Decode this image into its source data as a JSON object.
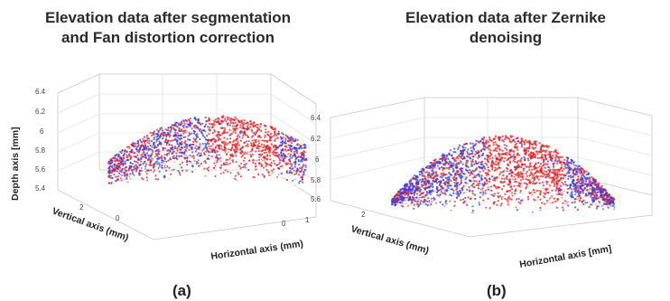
{
  "chart_data": [
    {
      "type": "scatter",
      "panel_label": "(a)",
      "title": "Elevation data after segmentation and Fan distortion correction",
      "title_lines": [
        "Elevation data after segmentation",
        "and Fan distortion correction"
      ],
      "xlabel": "Horizontal axis (mm)",
      "ylabel": "Vertical axis (mm)",
      "zlabel": "Depth axis [mm]",
      "z_ticks": [
        "5.4",
        "5.6",
        "5.8",
        "6",
        "6.2",
        "6.4"
      ],
      "zlim": [
        5.4,
        6.4
      ],
      "x_ticks": [
        "0",
        "1"
      ],
      "y_ticks": [
        "2",
        "0"
      ],
      "grid": true,
      "series_colors": [
        "#2a3cf0",
        "#f01d1d",
        "#ffffff"
      ]
    },
    {
      "type": "scatter",
      "panel_label": "(b)",
      "title": "Elevation data after Zernike denoising",
      "title_lines": [
        "Elevation data after Zernike",
        "denoising"
      ],
      "xlabel": "Horizontal axis [mm]",
      "ylabel": "Vertical axis (mm)",
      "zlabel": "",
      "z_ticks": [
        "5.6",
        "5.8",
        "6",
        "6.2",
        "6.4"
      ],
      "zlim": [
        5.6,
        6.4
      ],
      "y_ticks": [
        "2"
      ],
      "grid": true,
      "series_colors": [
        "#2a3cf0",
        "#f01d1d",
        "#ffffff"
      ]
    }
  ]
}
